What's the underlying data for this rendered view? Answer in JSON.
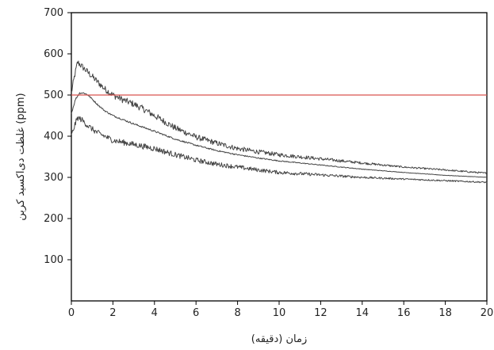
{
  "chart_data": {
    "type": "line",
    "title": "",
    "xlabel": "زمان (دقیقه)",
    "ylabel": "غلظت دی‌اکسید کربن (ppm)",
    "xlim": [
      0,
      20
    ],
    "ylim": [
      0,
      700
    ],
    "x_ticks": [
      "0",
      "2",
      "4",
      "6",
      "8",
      "10",
      "12",
      "14",
      "16",
      "18",
      "20"
    ],
    "y_ticks": [
      "100",
      "200",
      "300",
      "400",
      "500",
      "600",
      "700"
    ],
    "grid": false,
    "legend": "none",
    "series": [
      {
        "color": "#444444",
        "noise": 8,
        "x": [
          0,
          0.15,
          0.3,
          0.5,
          0.8,
          1.2,
          1.6,
          2,
          2.5,
          3,
          3.5,
          4,
          5,
          6,
          7,
          8,
          9,
          10,
          12,
          14,
          16,
          18,
          20
        ],
        "y": [
          505,
          545,
          580,
          570,
          555,
          535,
          515,
          500,
          488,
          478,
          465,
          450,
          420,
          398,
          383,
          370,
          362,
          355,
          345,
          335,
          325,
          318,
          310
        ]
      },
      {
        "color": "#444444",
        "noise": 2,
        "x": [
          0,
          0.2,
          0.4,
          0.6,
          0.8,
          1,
          1.3,
          1.6,
          2,
          2.5,
          3,
          4,
          5,
          6,
          7,
          8,
          9,
          10,
          12,
          14,
          16,
          18,
          20
        ],
        "y": [
          455,
          490,
          505,
          505,
          500,
          490,
          475,
          462,
          450,
          440,
          430,
          412,
          393,
          378,
          365,
          355,
          347,
          340,
          330,
          320,
          312,
          305,
          300
        ]
      },
      {
        "color": "#444444",
        "noise": 7,
        "x": [
          0,
          0.15,
          0.3,
          0.5,
          0.8,
          1.2,
          1.6,
          2,
          3,
          4,
          5,
          6,
          7,
          8,
          9,
          10,
          12,
          14,
          16,
          18,
          20
        ],
        "y": [
          400,
          425,
          445,
          440,
          425,
          410,
          400,
          390,
          380,
          370,
          355,
          342,
          332,
          325,
          318,
          312,
          306,
          300,
          296,
          292,
          288
        ]
      },
      {
        "color": "#d9534f",
        "noise": 0,
        "x": [
          0,
          20
        ],
        "y": [
          500,
          500
        ]
      }
    ]
  }
}
